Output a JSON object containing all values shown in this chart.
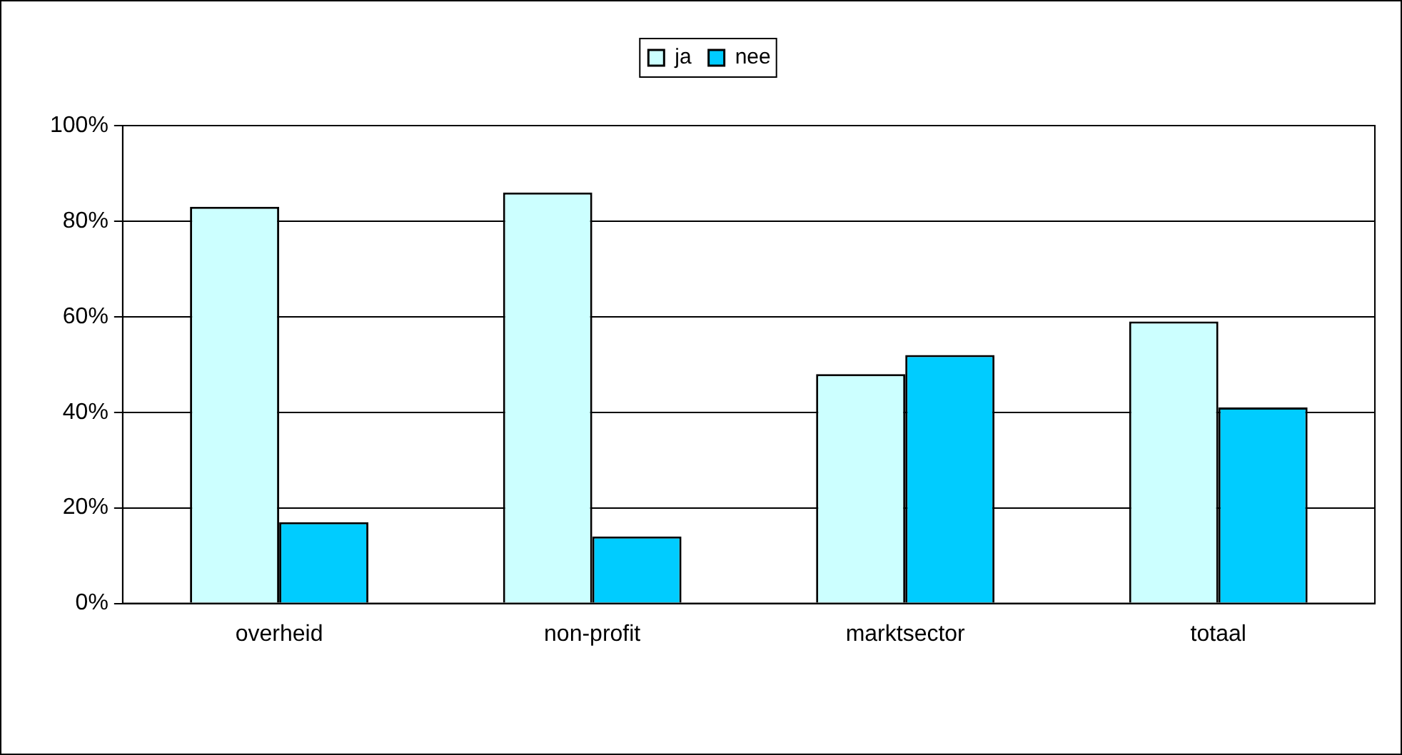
{
  "chart_data": {
    "type": "bar",
    "categories": [
      "overheid",
      "non-profit",
      "marktsector",
      "totaal"
    ],
    "series": [
      {
        "name": "ja",
        "color": "#ccffff",
        "values": [
          83,
          86,
          48,
          59
        ]
      },
      {
        "name": "nee",
        "color": "#00ccff",
        "values": [
          17,
          14,
          52,
          41
        ]
      }
    ],
    "ylim": [
      0,
      100
    ],
    "yticks": [
      {
        "value": 0,
        "label": "0%"
      },
      {
        "value": 20,
        "label": "20%"
      },
      {
        "value": 40,
        "label": "40%"
      },
      {
        "value": 60,
        "label": "60%"
      },
      {
        "value": 80,
        "label": "80%"
      },
      {
        "value": 100,
        "label": "100%"
      }
    ],
    "grid": "y",
    "legend": "top"
  }
}
